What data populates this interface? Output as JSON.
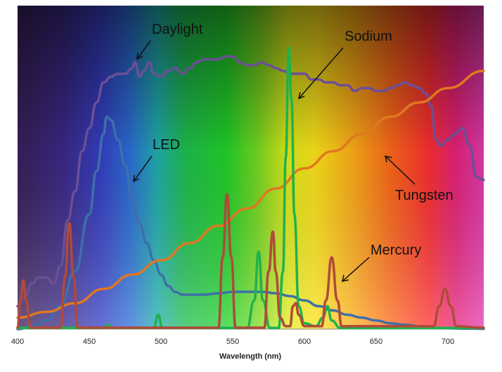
{
  "chart_data": {
    "type": "line",
    "title": "",
    "xlabel": "Wavelength (nm)",
    "ylabel": "",
    "xlim": [
      400,
      725
    ],
    "ylim": [
      0,
      100
    ],
    "x_ticks": [
      400,
      450,
      500,
      550,
      600,
      650,
      700
    ],
    "grid": false,
    "legend": "none (series labelled by callouts)",
    "background": "visible spectrum rainbow gradient",
    "series": [
      {
        "name": "Daylight",
        "color": "#6b4f96",
        "points": [
          [
            400,
            8
          ],
          [
            405,
            11
          ],
          [
            410,
            16
          ],
          [
            415,
            18
          ],
          [
            420,
            18
          ],
          [
            425,
            16
          ],
          [
            430,
            22
          ],
          [
            435,
            38
          ],
          [
            440,
            48
          ],
          [
            445,
            62
          ],
          [
            450,
            70
          ],
          [
            455,
            79
          ],
          [
            460,
            86
          ],
          [
            465,
            88
          ],
          [
            470,
            89
          ],
          [
            475,
            89
          ],
          [
            480,
            91
          ],
          [
            482,
            93
          ],
          [
            485,
            88
          ],
          [
            488,
            90
          ],
          [
            492,
            93
          ],
          [
            495,
            89
          ],
          [
            500,
            88
          ],
          [
            505,
            90
          ],
          [
            510,
            91
          ],
          [
            515,
            89
          ],
          [
            520,
            91
          ],
          [
            525,
            93
          ],
          [
            530,
            94
          ],
          [
            535,
            94
          ],
          [
            540,
            94
          ],
          [
            545,
            95
          ],
          [
            550,
            95
          ],
          [
            555,
            93
          ],
          [
            560,
            92
          ],
          [
            565,
            92
          ],
          [
            570,
            93
          ],
          [
            575,
            92
          ],
          [
            580,
            91
          ],
          [
            585,
            90
          ],
          [
            590,
            89
          ],
          [
            595,
            89
          ],
          [
            600,
            89
          ],
          [
            605,
            87
          ],
          [
            610,
            87
          ],
          [
            615,
            86
          ],
          [
            620,
            86
          ],
          [
            625,
            85
          ],
          [
            630,
            85
          ],
          [
            635,
            83
          ],
          [
            640,
            84
          ],
          [
            645,
            84
          ],
          [
            650,
            83
          ],
          [
            655,
            83
          ],
          [
            660,
            84
          ],
          [
            665,
            85
          ],
          [
            670,
            86
          ],
          [
            675,
            85
          ],
          [
            680,
            84
          ],
          [
            685,
            82
          ],
          [
            688,
            78
          ],
          [
            692,
            66
          ],
          [
            695,
            64
          ],
          [
            700,
            66
          ],
          [
            705,
            68
          ],
          [
            710,
            70
          ],
          [
            715,
            64
          ],
          [
            720,
            53
          ],
          [
            725,
            52
          ]
        ]
      },
      {
        "name": "LED",
        "color": "#3e6fa8",
        "points": [
          [
            400,
            0
          ],
          [
            410,
            1
          ],
          [
            420,
            3
          ],
          [
            430,
            8
          ],
          [
            440,
            20
          ],
          [
            450,
            40
          ],
          [
            455,
            55
          ],
          [
            460,
            68
          ],
          [
            462,
            74
          ],
          [
            465,
            73
          ],
          [
            470,
            66
          ],
          [
            475,
            57
          ],
          [
            480,
            45
          ],
          [
            485,
            37
          ],
          [
            490,
            30
          ],
          [
            495,
            24
          ],
          [
            500,
            19
          ],
          [
            505,
            15
          ],
          [
            510,
            13
          ],
          [
            515,
            12
          ],
          [
            520,
            12
          ],
          [
            530,
            12
          ],
          [
            540,
            12.5
          ],
          [
            550,
            13
          ],
          [
            560,
            13
          ],
          [
            570,
            13
          ],
          [
            580,
            12.5
          ],
          [
            590,
            11.5
          ],
          [
            600,
            10
          ],
          [
            610,
            8
          ],
          [
            620,
            6.5
          ],
          [
            630,
            5
          ],
          [
            640,
            4
          ],
          [
            650,
            3
          ],
          [
            660,
            2
          ],
          [
            670,
            1.5
          ],
          [
            680,
            1
          ],
          [
            690,
            0.5
          ],
          [
            700,
            0.3
          ],
          [
            710,
            0.2
          ],
          [
            725,
            0.1
          ]
        ]
      },
      {
        "name": "Tungsten",
        "color": "#e07820",
        "points": [
          [
            400,
            4
          ],
          [
            420,
            6
          ],
          [
            440,
            9
          ],
          [
            460,
            14
          ],
          [
            480,
            19
          ],
          [
            500,
            24
          ],
          [
            520,
            30
          ],
          [
            540,
            36
          ],
          [
            560,
            42
          ],
          [
            580,
            49
          ],
          [
            600,
            56
          ],
          [
            620,
            62
          ],
          [
            640,
            68
          ],
          [
            660,
            74
          ],
          [
            680,
            79
          ],
          [
            700,
            84
          ],
          [
            725,
            90
          ]
        ]
      },
      {
        "name": "Sodium",
        "color": "#1fb24a",
        "points": [
          [
            400,
            0.4
          ],
          [
            460,
            0.4
          ],
          [
            463,
            1.5
          ],
          [
            466,
            0.4
          ],
          [
            495,
            0.4
          ],
          [
            498,
            5
          ],
          [
            501,
            0.4
          ],
          [
            560,
            0.4
          ],
          [
            565,
            10
          ],
          [
            568,
            27
          ],
          [
            571,
            10
          ],
          [
            576,
            0.4
          ],
          [
            582,
            0.4
          ],
          [
            585,
            20
          ],
          [
            587,
            60
          ],
          [
            589,
            98
          ],
          [
            591,
            80
          ],
          [
            593,
            40
          ],
          [
            596,
            8
          ],
          [
            600,
            2
          ],
          [
            608,
            1
          ],
          [
            613,
            4
          ],
          [
            616,
            8
          ],
          [
            619,
            3
          ],
          [
            625,
            0.4
          ],
          [
            725,
            0.4
          ]
        ]
      },
      {
        "name": "Mercury",
        "color": "#b04a3a",
        "points": [
          [
            400,
            0.5
          ],
          [
            402,
            10
          ],
          [
            404,
            17
          ],
          [
            406,
            10
          ],
          [
            409,
            0.5
          ],
          [
            430,
            0.5
          ],
          [
            433,
            18
          ],
          [
            436,
            37
          ],
          [
            439,
            18
          ],
          [
            442,
            0.5
          ],
          [
            540,
            0.5
          ],
          [
            543,
            25
          ],
          [
            546,
            47
          ],
          [
            549,
            25
          ],
          [
            552,
            0.5
          ],
          [
            572,
            0.5
          ],
          [
            575,
            20
          ],
          [
            578,
            34
          ],
          [
            580,
            20
          ],
          [
            583,
            4
          ],
          [
            587,
            1
          ],
          [
            590,
            1
          ],
          [
            592,
            8
          ],
          [
            594,
            9
          ],
          [
            596,
            5
          ],
          [
            600,
            1
          ],
          [
            612,
            1
          ],
          [
            615,
            10
          ],
          [
            619,
            25
          ],
          [
            623,
            10
          ],
          [
            626,
            1
          ],
          [
            690,
            1
          ],
          [
            694,
            8
          ],
          [
            698,
            14
          ],
          [
            702,
            8
          ],
          [
            706,
            1
          ],
          [
            725,
            0.5
          ]
        ]
      }
    ],
    "callouts": [
      {
        "text": "Daylight",
        "series": "Daylight"
      },
      {
        "text": "Sodium",
        "series": "Sodium"
      },
      {
        "text": "LED",
        "series": "LED"
      },
      {
        "text": "Tungsten",
        "series": "Tungsten"
      },
      {
        "text": "Mercury",
        "series": "Mercury"
      }
    ]
  }
}
